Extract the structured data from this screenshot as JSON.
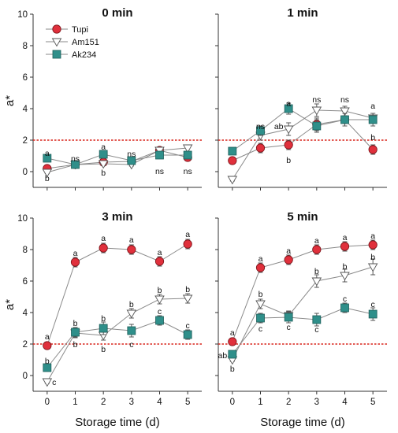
{
  "chart_data": {
    "type": "line",
    "ylabel": "a*",
    "xlabel": "Storage time (d)",
    "x": [
      0,
      1,
      2,
      3,
      4,
      5
    ],
    "xlim": [
      -0.5,
      5.5
    ],
    "ylim": [
      -1,
      10
    ],
    "yticks": [
      0,
      2,
      4,
      6,
      8,
      10
    ],
    "reference_line": 2,
    "colors": {
      "Tupi": "#e0303c",
      "Am151": "#ffffff",
      "Ak234": "#2f8f8a",
      "reference": "#d9251c"
    },
    "legend": {
      "position": "top-left",
      "entries": [
        "Tupi",
        "Am151",
        "Ak234"
      ]
    },
    "panels": [
      {
        "title": "0 min",
        "series": [
          {
            "name": "Tupi",
            "values": [
              0.2,
              0.45,
              0.6,
              0.65,
              1.35,
              0.9
            ],
            "err": [
              0.08,
              0.08,
              0.1,
              0.1,
              0.15,
              0.15
            ]
          },
          {
            "name": "Am151",
            "values": [
              -0.05,
              0.45,
              0.5,
              0.45,
              1.35,
              1.5
            ],
            "err": [
              0.08,
              0.08,
              0.1,
              0.1,
              0.15,
              0.2
            ]
          },
          {
            "name": "Ak234",
            "values": [
              0.85,
              0.45,
              1.1,
              0.7,
              1.05,
              1.05
            ],
            "err": [
              0.08,
              0.08,
              0.1,
              0.1,
              0.15,
              0.15
            ]
          }
        ],
        "annotations": [
          {
            "x": 0,
            "y": 1.2,
            "text": "a"
          },
          {
            "x": 0,
            "y": -0.4,
            "text": "b"
          },
          {
            "x": 1,
            "y": 0.85,
            "text": "ns"
          },
          {
            "x": 2,
            "y": 1.6,
            "text": "a"
          },
          {
            "x": 2,
            "y": -0.05,
            "text": "b"
          },
          {
            "x": 3,
            "y": 1.15,
            "text": "ns"
          },
          {
            "x": 4,
            "y": 0.05,
            "text": "ns"
          },
          {
            "x": 5,
            "y": 0.05,
            "text": "ns"
          }
        ]
      },
      {
        "title": "1 min",
        "series": [
          {
            "name": "Tupi",
            "values": [
              0.7,
              1.5,
              1.7,
              3.0,
              3.3,
              1.4
            ],
            "err": [
              0.1,
              0.3,
              0.3,
              0.4,
              0.4,
              0.3
            ]
          },
          {
            "name": "Am151",
            "values": [
              -0.5,
              2.3,
              2.7,
              3.9,
              3.85,
              3.4
            ],
            "err": [
              0.1,
              0.3,
              0.4,
              0.4,
              0.3,
              0.3
            ]
          },
          {
            "name": "Ak234",
            "values": [
              1.3,
              2.6,
              4.0,
              2.9,
              3.3,
              3.3
            ],
            "err": [
              0.1,
              0.3,
              0.35,
              0.4,
              0.4,
              0.4
            ]
          }
        ],
        "annotations": [
          {
            "x": 1,
            "y": 2.9,
            "text": "ns"
          },
          {
            "x": 2,
            "y": 4.35,
            "text": "a"
          },
          {
            "x": 1.65,
            "y": 2.9,
            "text": "ab"
          },
          {
            "x": 2,
            "y": 0.75,
            "text": "b"
          },
          {
            "x": 3,
            "y": 4.6,
            "text": "ns"
          },
          {
            "x": 4,
            "y": 4.6,
            "text": "ns"
          },
          {
            "x": 5,
            "y": 4.2,
            "text": "a"
          },
          {
            "x": 5,
            "y": 2.2,
            "text": "b"
          }
        ]
      },
      {
        "title": "3 min",
        "series": [
          {
            "name": "Tupi",
            "values": [
              1.9,
              7.2,
              8.1,
              8.0,
              7.25,
              8.35
            ],
            "err": [
              0.1,
              0.3,
              0.3,
              0.3,
              0.3,
              0.3
            ]
          },
          {
            "name": "Am151",
            "values": [
              -0.4,
              2.7,
              2.55,
              3.95,
              4.85,
              4.9
            ],
            "err": [
              0.1,
              0.3,
              0.3,
              0.3,
              0.3,
              0.3
            ]
          },
          {
            "name": "Ak234",
            "values": [
              0.5,
              2.75,
              3.0,
              2.85,
              3.5,
              2.6
            ],
            "err": [
              0.1,
              0.3,
              0.4,
              0.4,
              0.3,
              0.3
            ]
          }
        ],
        "annotations": [
          {
            "x": 0,
            "y": 2.5,
            "text": "a"
          },
          {
            "x": 0,
            "y": 0.95,
            "text": "b"
          },
          {
            "x": 0.25,
            "y": -0.4,
            "text": "c"
          },
          {
            "x": 1,
            "y": 7.8,
            "text": "a"
          },
          {
            "x": 1,
            "y": 3.35,
            "text": "b"
          },
          {
            "x": 1,
            "y": 2.0,
            "text": "b"
          },
          {
            "x": 2,
            "y": 8.75,
            "text": "a"
          },
          {
            "x": 2,
            "y": 3.65,
            "text": "b"
          },
          {
            "x": 2,
            "y": 1.7,
            "text": "b"
          },
          {
            "x": 3,
            "y": 8.65,
            "text": "a"
          },
          {
            "x": 3,
            "y": 4.55,
            "text": "b"
          },
          {
            "x": 3,
            "y": 2.0,
            "text": "c"
          },
          {
            "x": 4,
            "y": 7.85,
            "text": "a"
          },
          {
            "x": 4,
            "y": 5.45,
            "text": "b"
          },
          {
            "x": 4,
            "y": 4.1,
            "text": "c"
          },
          {
            "x": 5,
            "y": 9.0,
            "text": "a"
          },
          {
            "x": 5,
            "y": 5.5,
            "text": "b"
          },
          {
            "x": 5,
            "y": 3.2,
            "text": "c"
          }
        ]
      },
      {
        "title": "5 min",
        "series": [
          {
            "name": "Tupi",
            "values": [
              2.15,
              6.85,
              7.35,
              8.0,
              8.2,
              8.3
            ],
            "err": [
              0.1,
              0.3,
              0.3,
              0.3,
              0.3,
              0.3
            ]
          },
          {
            "name": "Am151",
            "values": [
              1.0,
              4.55,
              3.8,
              6.0,
              6.35,
              6.9
            ],
            "err": [
              0.1,
              0.3,
              0.3,
              0.4,
              0.4,
              0.5
            ]
          },
          {
            "name": "Ak234",
            "values": [
              1.35,
              3.65,
              3.7,
              3.55,
              4.3,
              3.9
            ],
            "err": [
              0.1,
              0.3,
              0.35,
              0.4,
              0.3,
              0.4
            ]
          }
        ],
        "annotations": [
          {
            "x": 0,
            "y": 2.75,
            "text": "a"
          },
          {
            "x": -0.35,
            "y": 1.3,
            "text": "ab"
          },
          {
            "x": 0,
            "y": 0.45,
            "text": "b"
          },
          {
            "x": 1,
            "y": 7.45,
            "text": "a"
          },
          {
            "x": 1,
            "y": 5.2,
            "text": "b"
          },
          {
            "x": 1,
            "y": 3.0,
            "text": "c"
          },
          {
            "x": 2,
            "y": 7.95,
            "text": "a"
          },
          {
            "x": 2,
            "y": 3.1,
            "text": "c"
          },
          {
            "x": 3,
            "y": 8.6,
            "text": "a"
          },
          {
            "x": 3,
            "y": 6.65,
            "text": "b"
          },
          {
            "x": 3,
            "y": 2.95,
            "text": "c"
          },
          {
            "x": 4,
            "y": 8.8,
            "text": "a"
          },
          {
            "x": 4,
            "y": 6.95,
            "text": "b"
          },
          {
            "x": 4,
            "y": 4.9,
            "text": "c"
          },
          {
            "x": 5,
            "y": 8.9,
            "text": "a"
          },
          {
            "x": 5,
            "y": 7.55,
            "text": "b"
          },
          {
            "x": 5,
            "y": 4.55,
            "text": "c"
          }
        ]
      }
    ]
  }
}
